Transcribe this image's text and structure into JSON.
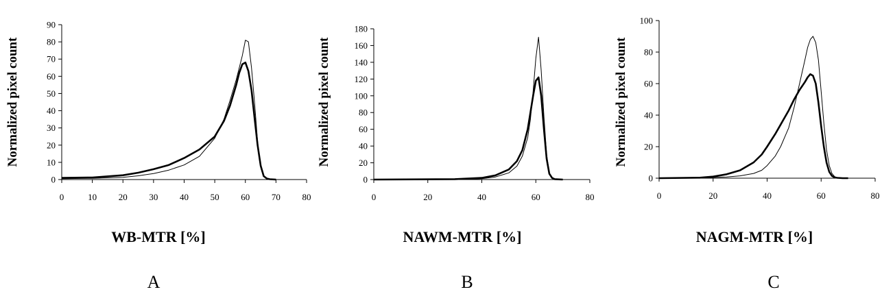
{
  "chart_data": [
    {
      "type": "line",
      "panel_label": "A",
      "xlabel": "WB-MTR [%]",
      "ylabel": "Normalized pixel count",
      "xlim": [
        0,
        80
      ],
      "ylim": [
        0,
        90
      ],
      "xticks": [
        0,
        10,
        20,
        30,
        40,
        50,
        60,
        70,
        80
      ],
      "yticks": [
        0,
        10,
        20,
        30,
        40,
        50,
        60,
        70,
        80,
        90
      ],
      "series": [
        {
          "style": "thin",
          "x": [
            0,
            10,
            20,
            25,
            30,
            35,
            40,
            45,
            50,
            53,
            55,
            57,
            59,
            60,
            61,
            62,
            63,
            64,
            65,
            66,
            67,
            68,
            70
          ],
          "y": [
            0.5,
            0.7,
            1.3,
            2.2,
            3.5,
            5.5,
            8.5,
            13.5,
            24,
            35,
            46,
            58,
            72,
            81,
            80,
            65,
            45,
            22,
            8,
            2,
            0.5,
            0.1,
            0
          ]
        },
        {
          "style": "thick",
          "x": [
            0,
            10,
            20,
            25,
            30,
            35,
            40,
            45,
            50,
            53,
            55,
            57,
            58,
            59,
            60,
            61,
            62,
            63,
            64,
            65,
            66,
            67,
            68,
            70
          ],
          "y": [
            1,
            1.2,
            2.5,
            4,
            6,
            8.5,
            12.5,
            17.5,
            25,
            34,
            43,
            55,
            62,
            67,
            68,
            63,
            52,
            36,
            20,
            8,
            2,
            0.6,
            0.2,
            0
          ]
        }
      ]
    },
    {
      "type": "line",
      "panel_label": "B",
      "xlabel": "NAWM-MTR [%]",
      "ylabel": "Normalized pixel count",
      "xlim": [
        0,
        80
      ],
      "ylim": [
        0,
        180
      ],
      "xticks": [
        0,
        20,
        40,
        60,
        80
      ],
      "yticks": [
        0,
        20,
        40,
        60,
        80,
        100,
        120,
        140,
        160,
        180
      ],
      "series": [
        {
          "style": "thin",
          "x": [
            0,
            30,
            40,
            45,
            50,
            53,
            55,
            57,
            58,
            59,
            60,
            61,
            62,
            63,
            64,
            65,
            66,
            67,
            70
          ],
          "y": [
            0,
            0,
            1,
            3,
            8,
            16,
            28,
            50,
            72,
            105,
            145,
            170,
            130,
            75,
            30,
            8,
            2,
            0,
            0
          ]
        },
        {
          "style": "thick",
          "x": [
            0,
            30,
            40,
            45,
            50,
            53,
            55,
            57,
            58,
            59,
            60,
            61,
            62,
            63,
            64,
            65,
            66,
            67,
            70
          ],
          "y": [
            0,
            0.5,
            2,
            5,
            12,
            22,
            35,
            60,
            80,
            100,
            118,
            122,
            100,
            60,
            25,
            7,
            2,
            0.5,
            0
          ]
        }
      ]
    },
    {
      "type": "line",
      "panel_label": "C",
      "xlabel": "NAGM-MTR [%]",
      "ylabel": "Normalized pixel count",
      "xlim": [
        0,
        80
      ],
      "ylim": [
        0,
        100
      ],
      "xticks": [
        0,
        20,
        40,
        60,
        80
      ],
      "yticks": [
        0,
        20,
        40,
        60,
        80,
        100
      ],
      "series": [
        {
          "style": "thin",
          "x": [
            0,
            20,
            25,
            30,
            35,
            38,
            40,
            43,
            45,
            48,
            50,
            52,
            54,
            55,
            56,
            57,
            58,
            59,
            60,
            61,
            62,
            63,
            64,
            65,
            66,
            68,
            70
          ],
          "y": [
            0,
            0.5,
            0.8,
            1.5,
            3,
            5,
            8,
            14,
            20,
            32,
            45,
            60,
            75,
            83,
            88,
            90,
            86,
            75,
            55,
            35,
            18,
            8,
            3,
            1,
            0.3,
            0,
            0
          ]
        },
        {
          "style": "thick",
          "x": [
            0,
            15,
            20,
            25,
            30,
            35,
            38,
            40,
            43,
            45,
            48,
            50,
            52,
            54,
            55,
            56,
            57,
            58,
            59,
            60,
            61,
            62,
            63,
            64,
            65,
            66,
            68,
            70
          ],
          "y": [
            0,
            0.3,
            1,
            2.5,
            5,
            10,
            15,
            20,
            28,
            34,
            43,
            50,
            56,
            61,
            64,
            66,
            65,
            60,
            48,
            33,
            20,
            10,
            4,
            1.5,
            0.5,
            0.2,
            0,
            0
          ]
        }
      ]
    }
  ]
}
